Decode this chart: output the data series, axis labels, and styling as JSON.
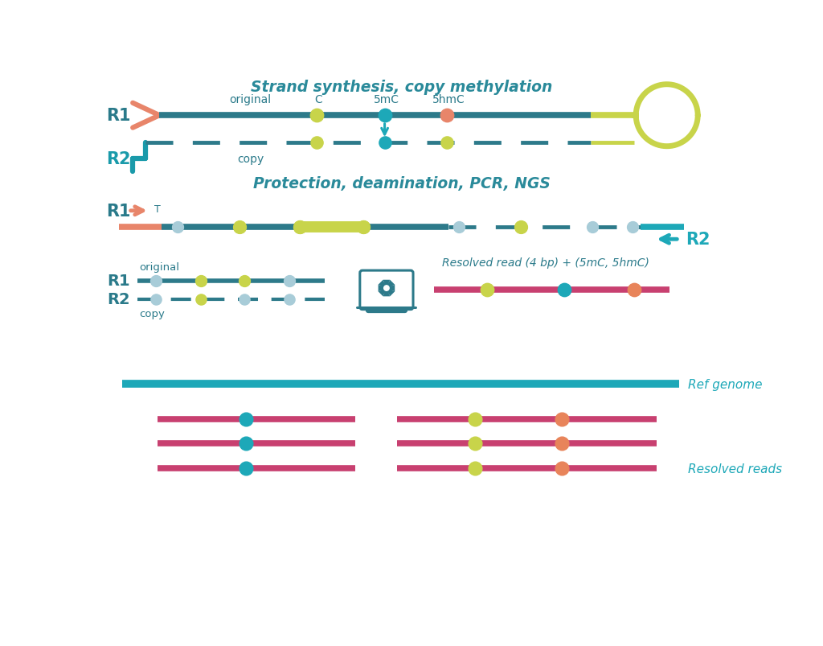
{
  "bg_color": "#ffffff",
  "teal_dark": "#2d6e7e",
  "teal_strand": "#2d7a8a",
  "teal_bright": "#1da8b8",
  "teal_r2": "#1a9aaa",
  "salmon": "#e8856a",
  "yellow_green": "#c8d44a",
  "light_blue": "#a8ccd8",
  "pink_red": "#c84070",
  "orange_dot": "#e8845a",
  "text_teal": "#2a7a8a",
  "text_header": "#2a8a9a",
  "title1": "Strand synthesis, copy methylation",
  "title2": "Protection, deamination, PCR, NGS",
  "label_original": "original",
  "label_copy": "copy",
  "label_C": "C",
  "label_5mC": "5mC",
  "label_5hmC": "5hmC",
  "label_R1": "R1",
  "label_R2": "R2",
  "label_T": "T",
  "label_resolved": "Resolved read (4 bp) + (5mC, 5hmC)",
  "label_ref": "Ref genome",
  "label_reads": "Resolved reads"
}
